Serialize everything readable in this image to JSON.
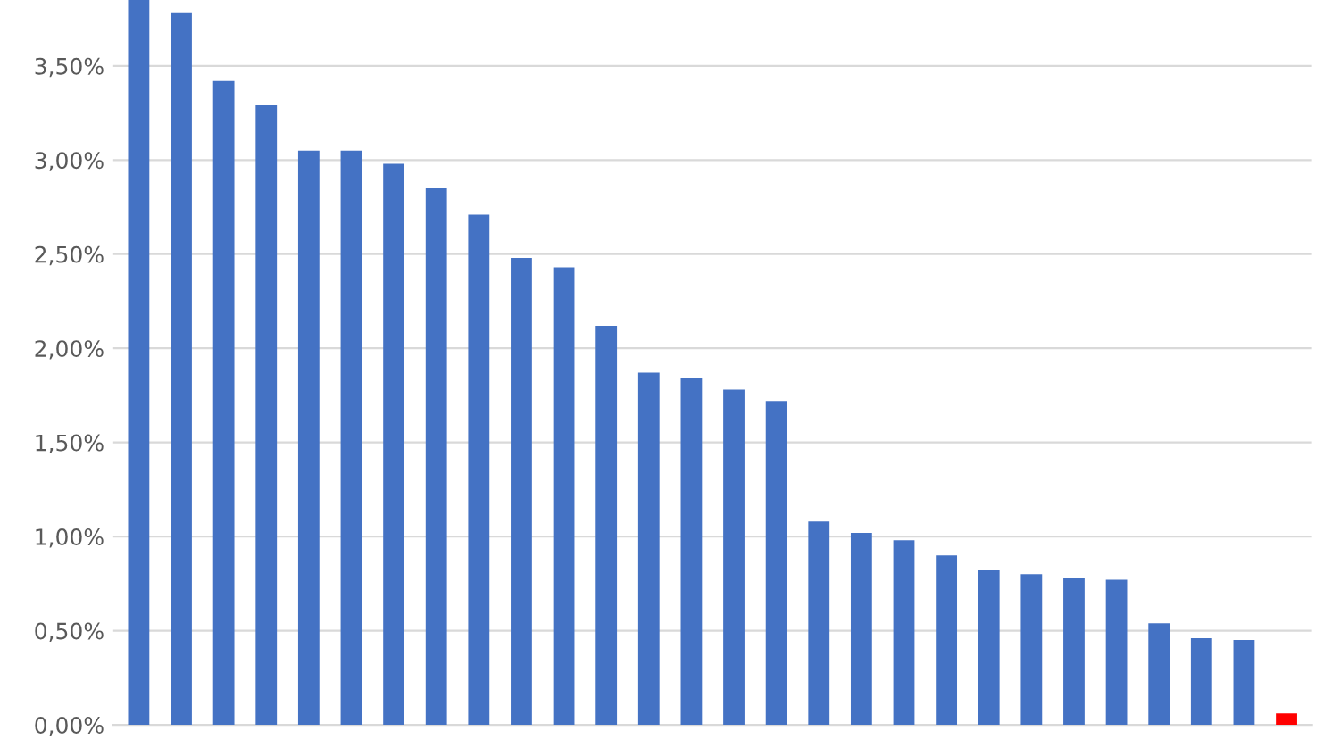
{
  "chart_data": {
    "type": "bar",
    "categories": [
      null,
      null,
      null,
      null,
      null,
      null,
      null,
      null,
      null,
      null,
      null,
      null,
      null,
      null,
      null,
      null,
      null,
      null,
      null,
      null,
      null,
      null,
      null,
      null,
      null,
      null,
      null,
      null
    ],
    "values": [
      3.85,
      3.78,
      3.42,
      3.29,
      3.05,
      3.05,
      2.98,
      2.85,
      2.71,
      2.48,
      2.43,
      2.12,
      1.87,
      1.84,
      1.78,
      1.72,
      1.08,
      1.02,
      0.98,
      0.9,
      0.82,
      0.8,
      0.78,
      0.77,
      0.54,
      0.46,
      0.45,
      0.06
    ],
    "colors": [
      "#4472c4",
      "#4472c4",
      "#4472c4",
      "#4472c4",
      "#4472c4",
      "#4472c4",
      "#4472c4",
      "#4472c4",
      "#4472c4",
      "#4472c4",
      "#4472c4",
      "#4472c4",
      "#4472c4",
      "#4472c4",
      "#4472c4",
      "#4472c4",
      "#4472c4",
      "#4472c4",
      "#4472c4",
      "#4472c4",
      "#4472c4",
      "#4472c4",
      "#4472c4",
      "#4472c4",
      "#4472c4",
      "#4472c4",
      "#4472c4",
      "#ff0000"
    ],
    "ylim": [
      0,
      3.85
    ],
    "yticks": [
      {
        "value": 0,
        "label": "0,00%"
      },
      {
        "value": 0.5,
        "label": "0,50%"
      },
      {
        "value": 1,
        "label": "1,00%"
      },
      {
        "value": 1.5,
        "label": "1,50%"
      },
      {
        "value": 2,
        "label": "2,00%"
      },
      {
        "value": 2.5,
        "label": "2,50%"
      },
      {
        "value": 3,
        "label": "3,00%"
      },
      {
        "value": 3.5,
        "label": "3,50%"
      }
    ],
    "grid": "y",
    "legend": false
  }
}
